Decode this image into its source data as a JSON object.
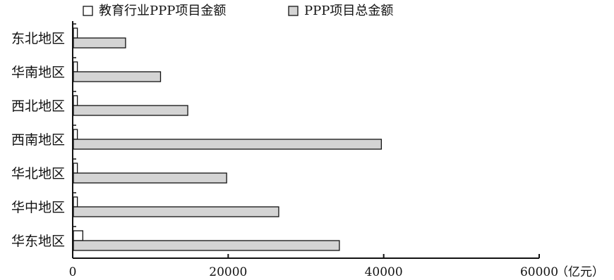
{
  "chart_data": {
    "type": "bar",
    "orientation": "horizontal",
    "categories": [
      "东北地区",
      "华南地区",
      "西北地区",
      "西南地区",
      "华北地区",
      "华中地区",
      "华东地区"
    ],
    "series": [
      {
        "name": "教育行业PPP项目金额",
        "color": "#ffffff",
        "values": [
          600,
          600,
          600,
          600,
          600,
          600,
          1300
        ]
      },
      {
        "name": "PPP项目总金额",
        "color": "#d4d4d4",
        "values": [
          6800,
          11300,
          14800,
          39700,
          19800,
          26500,
          34300
        ]
      }
    ],
    "xticks": [
      "0",
      "20000",
      "40000",
      "60000"
    ],
    "xlim": [
      0,
      60000
    ],
    "unit_label": "（亿元）",
    "legend_position": "top",
    "grid": false
  }
}
